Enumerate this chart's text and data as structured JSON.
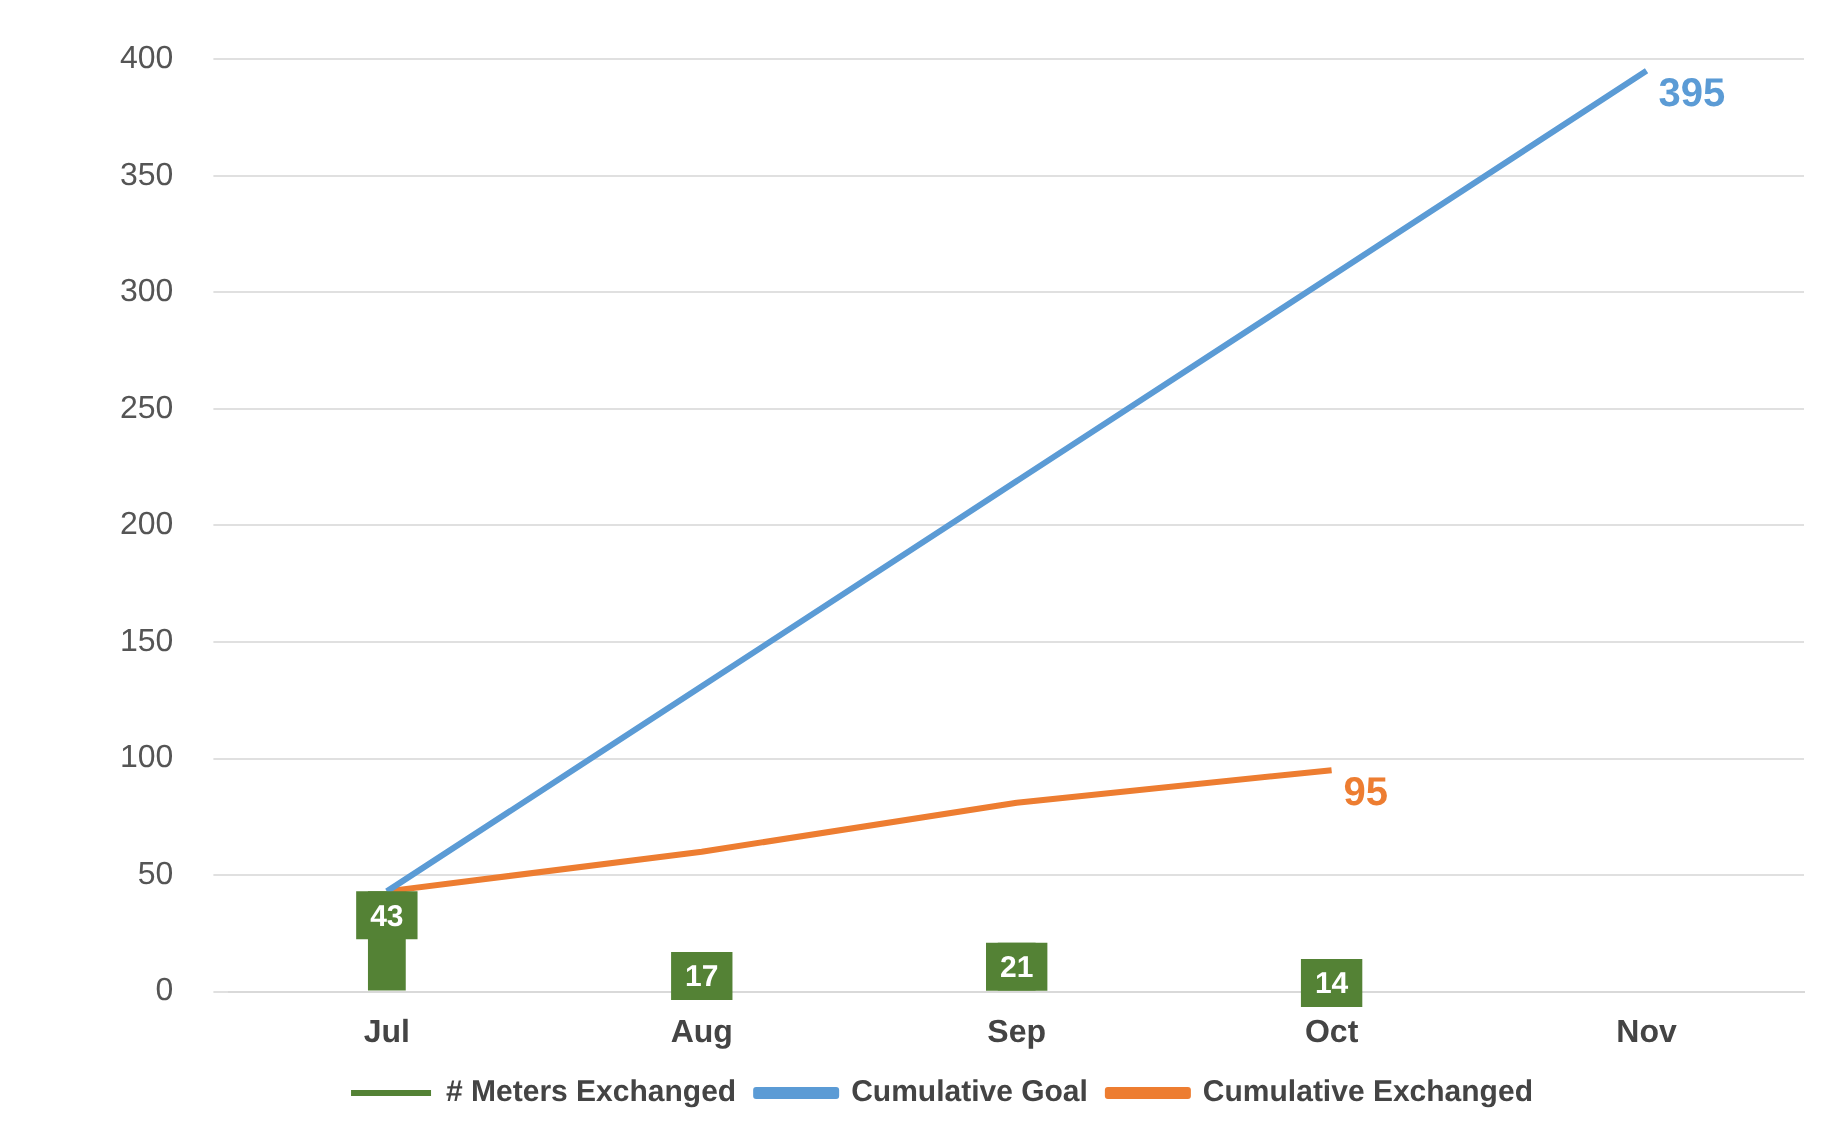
{
  "chart_data": {
    "type": "line",
    "categories": [
      "Jul",
      "Aug",
      "Sep",
      "Oct",
      "Nov"
    ],
    "series": [
      {
        "name": "# Meters Exchanged",
        "type": "bar",
        "color": "#548235",
        "values": [
          43,
          17,
          21,
          14,
          null
        ]
      },
      {
        "name": "Cumulative Goal",
        "color": "#5b9bd5",
        "values": [
          43,
          131,
          219,
          307,
          395
        ],
        "value_labels": [
          null,
          null,
          null,
          null,
          "395"
        ]
      },
      {
        "name": "Cumulative Exchanged",
        "color": "#ed7d31",
        "values": [
          43,
          60,
          81,
          95,
          null
        ],
        "value_labels": [
          null,
          null,
          null,
          "95",
          null
        ]
      }
    ],
    "data_labels": true,
    "ylim": [
      0,
      400
    ],
    "yticks": [
      0,
      50,
      100,
      150,
      200,
      250,
      300,
      350,
      400
    ],
    "grid": "y",
    "legend": "bottom",
    "marker": "none"
  }
}
